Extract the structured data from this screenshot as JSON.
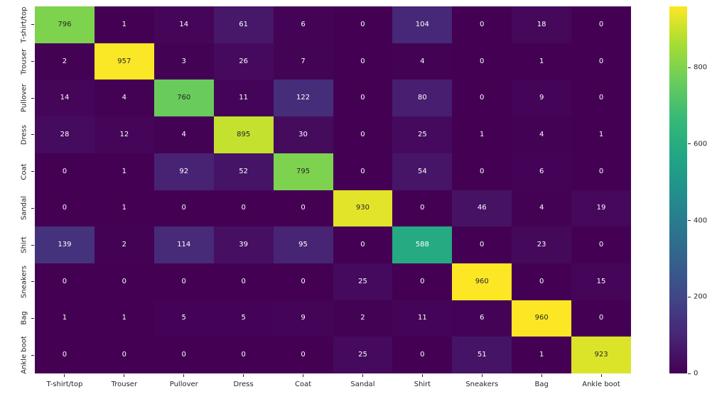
{
  "chart_data": {
    "type": "heatmap",
    "title": "",
    "xlabel": "",
    "ylabel": "",
    "x_categories": [
      "T-shirt/top",
      "Trouser",
      "Pullover",
      "Dress",
      "Coat",
      "Sandal",
      "Shirt",
      "Sneakers",
      "Bag",
      "Ankle boot"
    ],
    "y_categories": [
      "T-shirt/top",
      "Trouser",
      "Pullover",
      "Dress",
      "Coat",
      "Sandal",
      "Shirt",
      "Sneakers",
      "Bag",
      "Ankle boot"
    ],
    "matrix": [
      [
        796,
        1,
        14,
        61,
        6,
        0,
        104,
        0,
        18,
        0
      ],
      [
        2,
        957,
        3,
        26,
        7,
        0,
        4,
        0,
        1,
        0
      ],
      [
        14,
        4,
        760,
        11,
        122,
        0,
        80,
        0,
        9,
        0
      ],
      [
        28,
        12,
        4,
        895,
        30,
        0,
        25,
        1,
        4,
        1
      ],
      [
        0,
        1,
        92,
        52,
        795,
        0,
        54,
        0,
        6,
        0
      ],
      [
        0,
        1,
        0,
        0,
        0,
        930,
        0,
        46,
        4,
        19
      ],
      [
        139,
        2,
        114,
        39,
        95,
        0,
        588,
        0,
        23,
        0
      ],
      [
        0,
        0,
        0,
        0,
        0,
        25,
        0,
        960,
        0,
        15
      ],
      [
        1,
        1,
        5,
        5,
        9,
        2,
        11,
        6,
        960,
        0
      ],
      [
        0,
        0,
        0,
        0,
        0,
        25,
        0,
        51,
        1,
        923
      ]
    ],
    "vmin": 0,
    "vmax": 960,
    "colormap": "viridis",
    "colormap_stops": [
      "#440154",
      "#482475",
      "#414487",
      "#355f8d",
      "#2a788e",
      "#21918c",
      "#22a884",
      "#3aba76",
      "#6ccd5a",
      "#a7de32",
      "#fde725"
    ],
    "colorbar": {
      "position": "right",
      "ticks": [
        0,
        200,
        400,
        600,
        800
      ]
    },
    "annotation_text_light": "#ffffff",
    "annotation_text_dark": "#262626",
    "grid": false,
    "legend": false
  }
}
